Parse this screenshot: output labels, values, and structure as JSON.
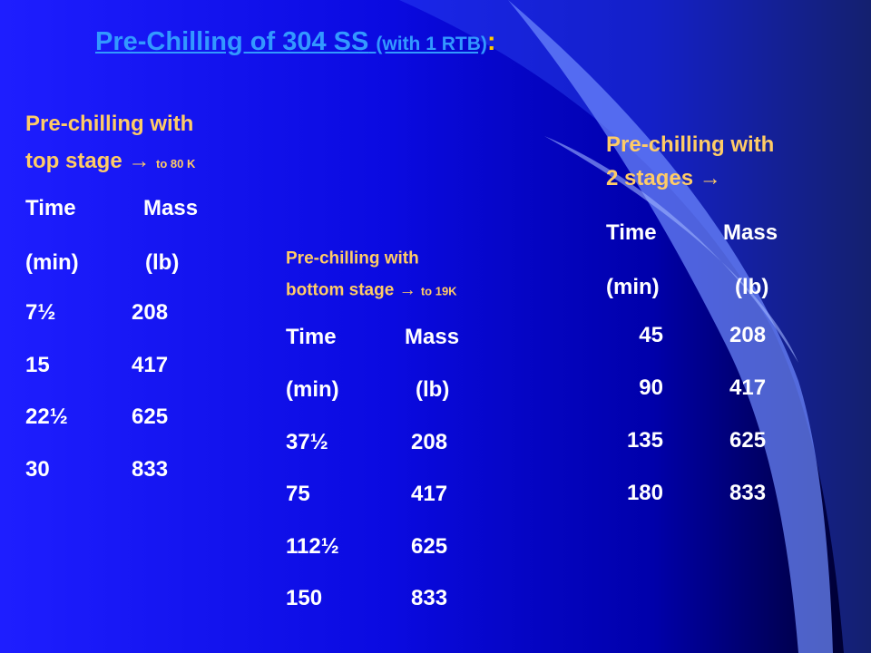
{
  "title": {
    "main": "Pre-Chilling of 304 SS",
    "sub": "(with 1 RTB)",
    "colon": ":"
  },
  "sections": [
    {
      "heading": [
        "Pre-chilling with",
        "top stage"
      ],
      "arrow": "→",
      "note": "to 80 K",
      "header": [
        "Time",
        "Mass"
      ],
      "units": [
        "(min)",
        "(lb)"
      ],
      "rows": [
        [
          "7½",
          "208"
        ],
        [
          "15",
          "417"
        ],
        [
          "22½",
          "625"
        ],
        [
          "30",
          "833"
        ]
      ]
    },
    {
      "heading": [
        "Pre-chilling with",
        "bottom stage"
      ],
      "arrow": "→",
      "note": "to 19K",
      "header": [
        "Time",
        "Mass"
      ],
      "units": [
        "(min)",
        "(lb)"
      ],
      "rows": [
        [
          "37½",
          "208"
        ],
        [
          "75",
          "417"
        ],
        [
          "112½",
          "625"
        ],
        [
          "150",
          "833"
        ]
      ]
    },
    {
      "heading": [
        "Pre-chilling with",
        "2 stages"
      ],
      "arrow": "→",
      "header": [
        "Time",
        "Mass"
      ],
      "units": [
        "(min)",
        "(lb)"
      ],
      "rows": [
        [
          "45",
          "208"
        ],
        [
          "90",
          "417"
        ],
        [
          "135",
          "625"
        ],
        [
          "180",
          "833"
        ]
      ]
    }
  ]
}
